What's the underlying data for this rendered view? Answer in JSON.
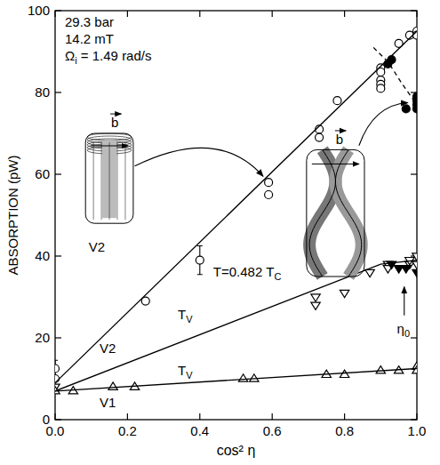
{
  "chart_data": {
    "type": "scatter",
    "x_label": "cos² η",
    "y_label": "ABSORPTION (pW)",
    "xlim": [
      0,
      1.0
    ],
    "ylim": [
      0,
      100
    ],
    "xticks": [
      {
        "value": 0,
        "label": "0.0"
      },
      0.2,
      0.4,
      0.6,
      0.8,
      {
        "value": 1.0,
        "label": "1.0"
      }
    ],
    "yticks": [
      0,
      20,
      40,
      60,
      80,
      100
    ],
    "grid": false,
    "color": "#000000",
    "series": [
      {
        "type": "scatter",
        "marker": "circle-open",
        "color": "#000000",
        "x": [
          0,
          0,
          0.25,
          0.4,
          0.59,
          0.59,
          0.73,
          0.73,
          0.78,
          0.9,
          0.9,
          0.9,
          0.9,
          0.9,
          0.95,
          0.98,
          1.0,
          1.0
        ],
        "values": [
          12.5,
          10,
          29,
          39,
          58,
          55,
          71,
          69,
          78,
          86,
          85,
          83,
          82,
          81,
          92,
          94,
          95,
          94
        ],
        "errors": [
          2,
          null,
          null,
          3.5,
          null,
          null,
          null,
          null,
          null,
          null,
          null,
          null,
          null,
          null,
          null,
          null,
          null,
          null
        ]
      },
      {
        "type": "scatter",
        "marker": "circle",
        "color": "#000000",
        "x": [
          0.92,
          0.93,
          0.97,
          1.0,
          1.0,
          1.0,
          1.0
        ],
        "values": [
          87,
          88,
          76,
          79,
          78,
          77,
          76
        ]
      },
      {
        "type": "scatter",
        "marker": "triangle-down-open",
        "color": "#000000",
        "x": [
          0,
          0.72,
          0.72,
          0.8,
          0.87,
          0.92,
          0.92,
          0.98,
          0.98,
          1.0,
          1.0
        ],
        "values": [
          8,
          30,
          28,
          31,
          36,
          38,
          37,
          38,
          39,
          40,
          38
        ]
      },
      {
        "type": "scatter",
        "marker": "triangle-down",
        "color": "#000000",
        "x": [
          0.93,
          0.95,
          0.97,
          1.0
        ],
        "values": [
          38,
          37,
          37,
          36
        ]
      },
      {
        "type": "scatter",
        "marker": "triangle-up-open",
        "color": "#000000",
        "x": [
          0,
          0.05,
          0.16,
          0.22,
          0.52,
          0.55,
          0.75,
          0.8,
          0.9,
          0.95,
          1.0,
          1.0
        ],
        "values": [
          7,
          7,
          8,
          8,
          10,
          10,
          11,
          11,
          12,
          12,
          13,
          12
        ]
      },
      {
        "type": "line",
        "line_style": "solid",
        "color": "#000000",
        "x": [
          0,
          1.0
        ],
        "values": [
          9,
          95
        ]
      },
      {
        "type": "line",
        "line_style": "solid",
        "color": "#000000",
        "x": [
          0,
          0.9,
          1.0
        ],
        "values": [
          7,
          38,
          39
        ]
      },
      {
        "type": "line",
        "line_style": "solid",
        "color": "#000000",
        "x": [
          0,
          1.0
        ],
        "values": [
          7,
          12.5
        ]
      },
      {
        "type": "line",
        "line_style": "dashed",
        "color": "#000000",
        "x": [
          0.88,
          0.92,
          0.96,
          1.0
        ],
        "values": [
          91,
          87.5,
          82,
          77
        ]
      }
    ],
    "annotations": [
      {
        "text": "29.3 bar"
      },
      {
        "text": "14.2 mT"
      },
      {
        "text": "Ω",
        "sub": "i",
        "after": " = 1.49 rad/s"
      },
      {
        "text": "V2"
      },
      {
        "text": "T",
        "sub": "V"
      },
      {
        "text": "V2"
      },
      {
        "text": "V1"
      },
      {
        "text": "T",
        "sub": "V"
      },
      {
        "text": "T=0.482 T",
        "sub": "C"
      },
      {
        "text": "η",
        "sub": "0"
      },
      {
        "text": "b"
      },
      {
        "text": "b"
      }
    ]
  }
}
